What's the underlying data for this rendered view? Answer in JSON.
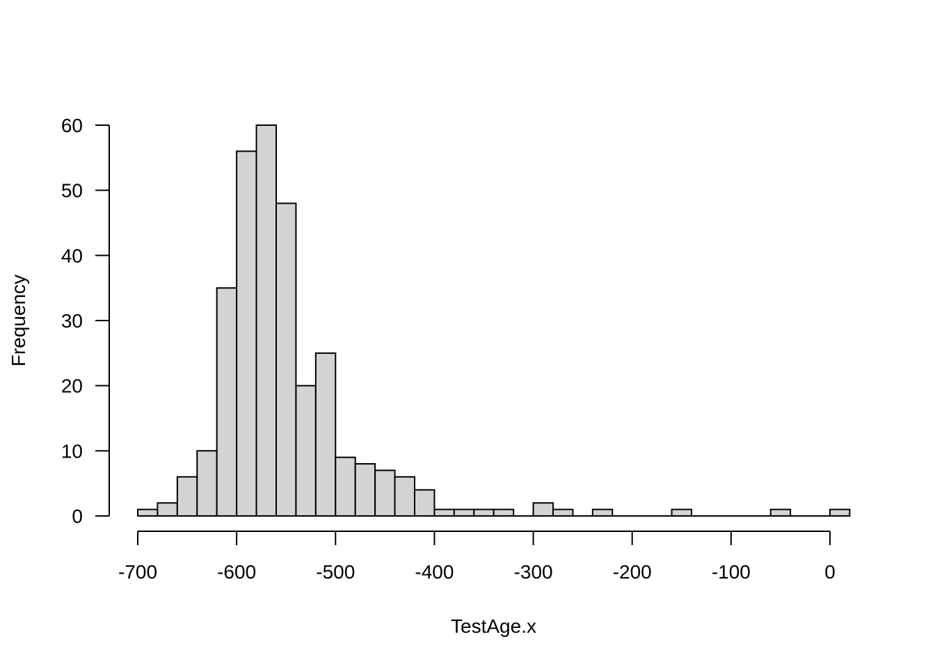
{
  "chart_data": {
    "type": "bar",
    "title": "",
    "xlabel": "TestAge.x",
    "ylabel": "Frequency",
    "bin_start": -700,
    "bin_width": 20,
    "values": [
      1,
      2,
      6,
      10,
      35,
      56,
      60,
      48,
      20,
      25,
      9,
      8,
      7,
      6,
      4,
      1,
      1,
      1,
      1,
      0,
      2,
      1,
      0,
      1,
      0,
      0,
      0,
      1,
      0,
      0,
      0,
      0,
      1,
      0,
      0,
      1
    ],
    "xlim": [
      -700,
      20
    ],
    "ylim": [
      0,
      60
    ],
    "x_ticks": [
      -700,
      -600,
      -500,
      -400,
      -300,
      -200,
      -100,
      0
    ],
    "y_ticks": [
      0,
      10,
      20,
      30,
      40,
      50,
      60
    ],
    "bar_fill": "#d3d3d3",
    "bar_stroke": "#000000",
    "grid": false
  }
}
